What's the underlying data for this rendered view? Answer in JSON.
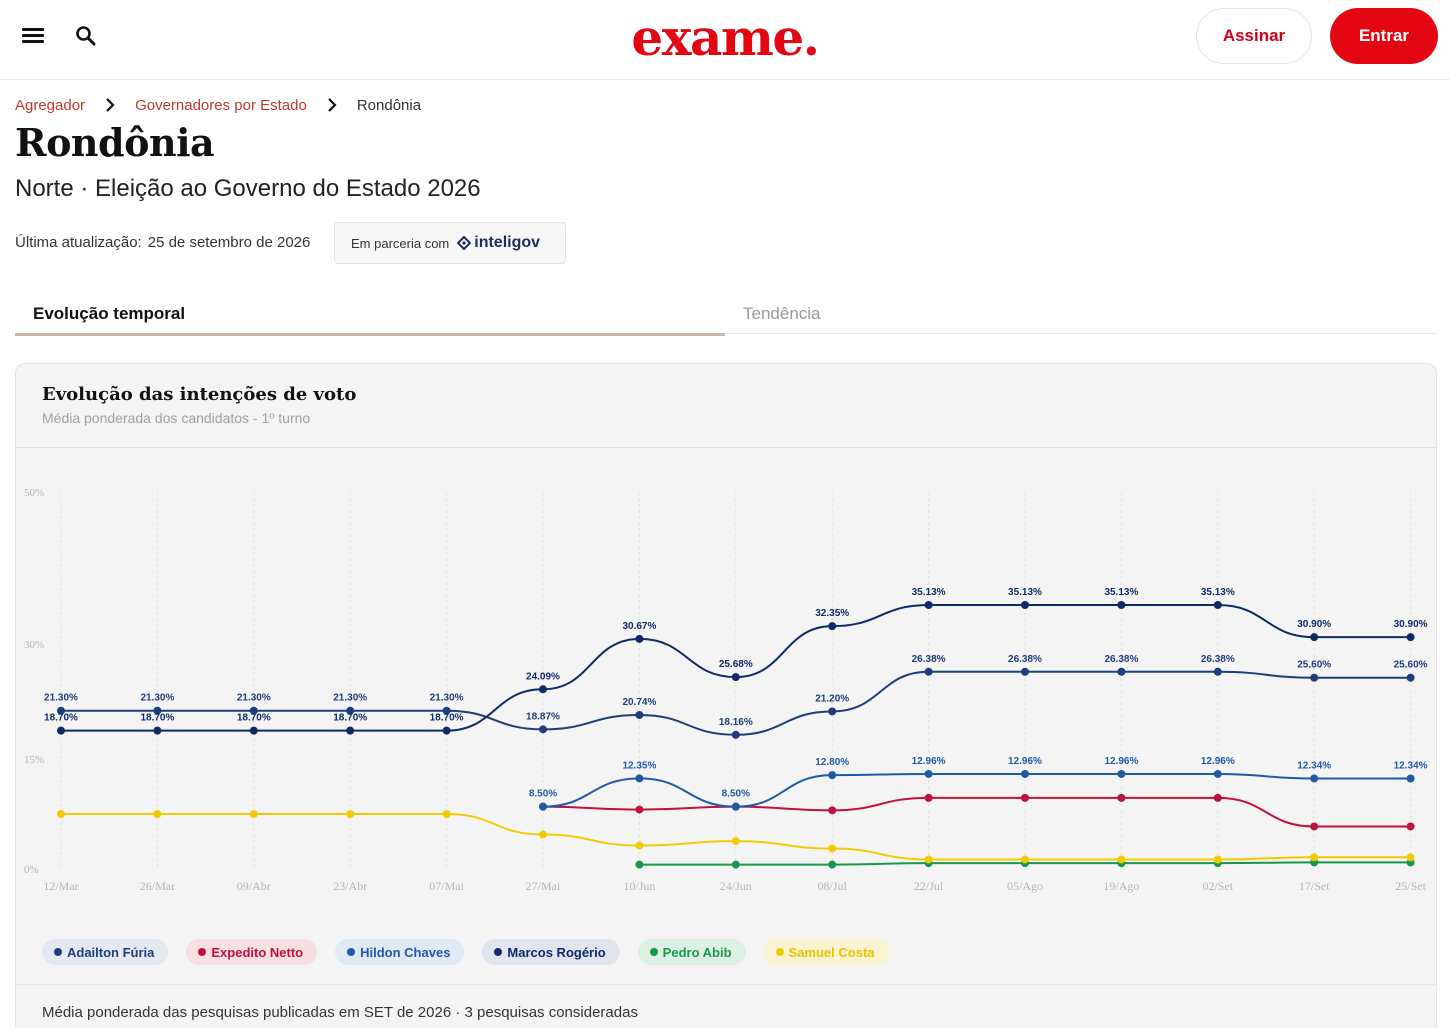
{
  "header": {
    "logo": "exame.",
    "subscribe_label": "Assinar",
    "login_label": "Entrar"
  },
  "breadcrumb": {
    "items": [
      "Agregador",
      "Governadores por Estado"
    ],
    "current": "Rondônia"
  },
  "page": {
    "title": "Rondônia",
    "subtitle": "Norte · Eleição ao Governo do Estado 2026",
    "update_label": "Última atualização:",
    "update_date": "25 de setembro de 2026",
    "partner_label": "Em parceria com",
    "partner_brand": "inteligov"
  },
  "tabs": [
    {
      "label": "Evolução temporal",
      "active": true
    },
    {
      "label": "Tendência",
      "active": false
    }
  ],
  "card": {
    "title": "Evolução das intenções de voto",
    "subtitle": "Média ponderada dos candidatos - 1º turno",
    "footnote": "Média ponderada das pesquisas publicadas em SET de 2026 · 3 pesquisas consideradas"
  },
  "chart_data": {
    "type": "line",
    "x": [
      "12/Mar",
      "26/Mar",
      "09/Abr",
      "23/Abr",
      "07/Mai",
      "27/Mai",
      "10/Jun",
      "24/Jun",
      "08/Jul",
      "22/Jul",
      "05/Ago",
      "19/Ago",
      "02/Set",
      "17/Set",
      "25/Set"
    ],
    "y_ticks": [
      "50%",
      "30%",
      "15%",
      "0%"
    ],
    "ylim": [
      0,
      50
    ],
    "series": [
      {
        "name": "Adailton Fúria",
        "color": "#1f3d7a",
        "values": [
          21.3,
          21.3,
          21.3,
          21.3,
          21.3,
          18.87,
          20.74,
          18.16,
          21.2,
          26.38,
          26.38,
          26.38,
          26.38,
          25.6,
          25.6
        ],
        "labels": [
          "21.30%",
          "21.30%",
          "21.30%",
          "21.30%",
          "21.30%",
          "18.87%",
          "20.74%",
          "18.16%",
          "21.20%",
          "26.38%",
          "26.38%",
          "26.38%",
          "26.38%",
          "25.60%",
          "25.60%"
        ]
      },
      {
        "name": "Expedito Netto",
        "color": "#c0123c",
        "values": [
          null,
          null,
          null,
          null,
          null,
          8.5,
          8.1,
          8.5,
          8.0,
          9.7,
          9.7,
          9.7,
          9.7,
          5.8,
          5.8
        ],
        "labels": []
      },
      {
        "name": "Hildon Chaves",
        "color": "#1f5aa6",
        "values": [
          null,
          null,
          null,
          null,
          null,
          8.5,
          12.35,
          8.5,
          12.8,
          12.96,
          12.96,
          12.96,
          12.96,
          12.34,
          12.34
        ],
        "labels": [
          "",
          "",
          "",
          "",
          "",
          "8.50%",
          "12.35%",
          "8.50%",
          "12.80%",
          "12.96%",
          "12.96%",
          "12.96%",
          "12.96%",
          "12.34%",
          "12.34%"
        ]
      },
      {
        "name": "Marcos Rogério",
        "color": "#0f2a66",
        "values": [
          18.7,
          18.7,
          18.7,
          18.7,
          18.7,
          24.09,
          30.67,
          25.68,
          32.35,
          35.13,
          35.13,
          35.13,
          35.13,
          30.9,
          30.9
        ],
        "labels": [
          "18.70%",
          "18.70%",
          "18.70%",
          "18.70%",
          "18.70%",
          "24.09%",
          "30.67%",
          "25.68%",
          "32.35%",
          "35.13%",
          "35.13%",
          "35.13%",
          "35.13%",
          "30.90%",
          "30.90%"
        ]
      },
      {
        "name": "Pedro Abib",
        "color": "#17994a",
        "values": [
          null,
          null,
          null,
          null,
          null,
          null,
          0.6,
          0.6,
          0.6,
          0.8,
          0.8,
          0.8,
          0.8,
          0.9,
          0.9
        ],
        "labels": []
      },
      {
        "name": "Samuel Costa",
        "color": "#f2cb05",
        "values": [
          7.5,
          7.5,
          7.5,
          7.5,
          7.5,
          4.7,
          3.2,
          3.8,
          2.8,
          1.3,
          1.3,
          1.3,
          1.3,
          1.6,
          1.6
        ],
        "labels": []
      }
    ],
    "grid": true,
    "legend_position": "bottom-left"
  },
  "legend": [
    {
      "name": "Adailton Fúria",
      "dot": "#1f3d7a",
      "bg": "#e3e8f2",
      "text": "#1f3d7a"
    },
    {
      "name": "Expedito Netto",
      "dot": "#c0123c",
      "bg": "#f6dfe3",
      "text": "#c0123c"
    },
    {
      "name": "Hildon Chaves",
      "dot": "#1f5aa6",
      "bg": "#e1e9f5",
      "text": "#1f5aa6"
    },
    {
      "name": "Marcos Rogério",
      "dot": "#0f2a66",
      "bg": "#e0e4ee",
      "text": "#0f2a66"
    },
    {
      "name": "Pedro Abib",
      "dot": "#17994a",
      "bg": "#ddf0e4",
      "text": "#17994a"
    },
    {
      "name": "Samuel Costa",
      "dot": "#f2cb05",
      "bg": "#fbf3d0",
      "text": "#e8c200"
    }
  ]
}
